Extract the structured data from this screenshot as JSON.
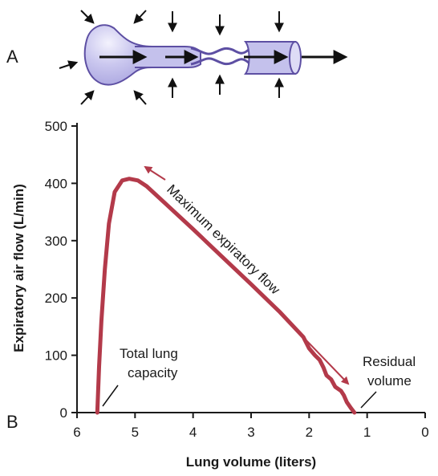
{
  "panels": {
    "a_label": "A",
    "b_label": "B"
  },
  "colors": {
    "curve": "#b33a4a",
    "tube_fill": "#c4c1ec",
    "tube_stroke": "#5d4fa3",
    "arrow": "#111111"
  },
  "icons": {
    "airway": "airway-diagram",
    "pressure_arrows": "compression-arrows"
  },
  "chart_data": {
    "type": "line",
    "title": "",
    "xlabel": "Lung volume (liters)",
    "ylabel": "Expiratory air flow (L/min)",
    "x_reversed": true,
    "xlim": [
      6,
      0
    ],
    "ylim": [
      0,
      500
    ],
    "x_ticks": [
      6,
      5,
      4,
      3,
      2,
      1,
      0
    ],
    "y_ticks": [
      0,
      100,
      200,
      300,
      400,
      500
    ],
    "grid": false,
    "series": [
      {
        "x": [
          5.65,
          5.62,
          5.58,
          5.52,
          5.45,
          5.35,
          5.22,
          5.1,
          4.95,
          4.8,
          4.5,
          4.0,
          3.5,
          3.0,
          2.5,
          2.1,
          2.0,
          1.9,
          1.82,
          1.75,
          1.7,
          1.62,
          1.55,
          1.45,
          1.4,
          1.35,
          1.28,
          1.22
        ],
        "y": [
          0,
          80,
          160,
          250,
          330,
          385,
          405,
          408,
          405,
          395,
          367,
          320,
          272,
          224,
          175,
          132,
          112,
          100,
          92,
          78,
          65,
          58,
          45,
          38,
          30,
          18,
          8,
          0
        ]
      }
    ],
    "annotations": {
      "curve_label": "Maximum expiratory flow",
      "left_label_lines": [
        "Total lung",
        "capacity"
      ],
      "right_label_lines": [
        "Residual",
        "volume"
      ]
    }
  }
}
